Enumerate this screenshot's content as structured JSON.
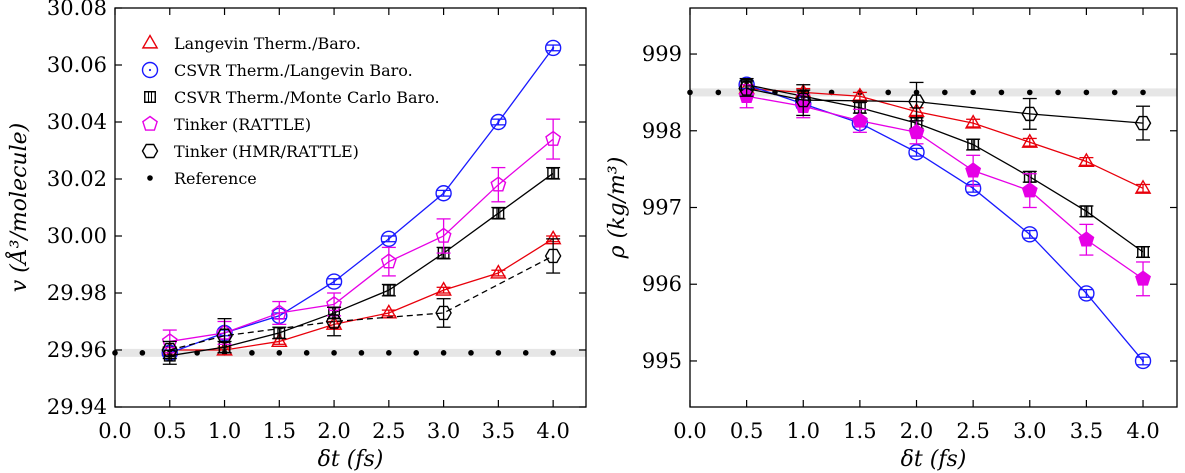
{
  "chart_data": [
    {
      "type": "line",
      "xlabel": "δt (fs)",
      "ylabel": "v (Å³/molecule)",
      "xlim": [
        0.0,
        4.3
      ],
      "ylim": [
        29.94,
        30.08
      ],
      "xticks": [
        0.0,
        0.5,
        1.0,
        1.5,
        2.0,
        2.5,
        3.0,
        3.5,
        4.0
      ],
      "xtick_labels": [
        "0.0",
        "0.5",
        "1.0",
        "1.5",
        "2.0",
        "2.5",
        "3.0",
        "3.5",
        "4.0"
      ],
      "yticks": [
        29.94,
        29.96,
        29.98,
        30.0,
        30.02,
        30.04,
        30.06,
        30.08
      ],
      "ytick_labels": [
        "29.94",
        "29.96",
        "29.98",
        "30.00",
        "30.02",
        "30.04",
        "30.06",
        "30.08"
      ],
      "legend_position": "top-left",
      "reference": {
        "name": "Reference",
        "value": 29.959
      },
      "series": [
        {
          "name": "Langevin Therm./Baro.",
          "color": "#e8000b",
          "marker": "triangle",
          "line": "solid",
          "x": [
            0.5,
            1.0,
            1.5,
            2.0,
            2.5,
            3.0,
            3.5,
            4.0
          ],
          "y": [
            29.96,
            29.96,
            29.963,
            29.969,
            29.973,
            29.981,
            29.987,
            29.999
          ],
          "err": [
            0.001,
            0.001,
            0.001,
            0.001,
            0.001,
            0.001,
            0.001,
            0.001
          ]
        },
        {
          "name": "CSVR Therm./Langevin Baro.",
          "color": "#1a1aff",
          "marker": "circle",
          "line": "solid",
          "x": [
            0.5,
            1.0,
            1.5,
            2.0,
            2.5,
            3.0,
            3.5,
            4.0
          ],
          "y": [
            29.959,
            29.966,
            29.972,
            29.984,
            29.999,
            30.015,
            30.04,
            30.066
          ],
          "err": [
            0.001,
            0.001,
            0.001,
            0.001,
            0.001,
            0.001,
            0.001,
            0.001
          ]
        },
        {
          "name": "CSVR Therm./Monte Carlo Baro.",
          "color": "#000000",
          "marker": "square",
          "line": "solid",
          "x": [
            0.5,
            1.0,
            1.5,
            2.0,
            2.5,
            3.0,
            3.5,
            4.0
          ],
          "y": [
            29.958,
            29.961,
            29.966,
            29.973,
            29.981,
            29.994,
            30.008,
            30.022
          ],
          "err": [
            0.003,
            0.002,
            0.002,
            0.002,
            0.002,
            0.002,
            0.002,
            0.002
          ]
        },
        {
          "name": "Tinker (RATTLE)",
          "color": "#e600e6",
          "marker": "pentagon",
          "line": "solid",
          "x": [
            0.5,
            1.0,
            1.5,
            2.0,
            2.5,
            3.0,
            3.5,
            4.0
          ],
          "y": [
            29.963,
            29.966,
            29.973,
            29.976,
            29.991,
            30.0,
            30.018,
            30.034
          ],
          "err": [
            0.004,
            0.004,
            0.004,
            0.004,
            0.005,
            0.006,
            0.006,
            0.007
          ]
        },
        {
          "name": "Tinker (HMR/RATTLE)",
          "color": "#000000",
          "marker": "hexagon",
          "line": "dashed",
          "x": [
            0.5,
            1.0,
            2.0,
            3.0,
            4.0
          ],
          "y": [
            29.96,
            29.965,
            29.97,
            29.973,
            29.993
          ],
          "err": [
            0.003,
            0.006,
            0.005,
            0.005,
            0.006
          ]
        }
      ]
    },
    {
      "type": "line",
      "xlabel": "δt (fs)",
      "ylabel": "ρ (kg/m³)",
      "xlim": [
        0.0,
        4.3
      ],
      "ylim": [
        994.4,
        999.6
      ],
      "xticks": [
        0.0,
        0.5,
        1.0,
        1.5,
        2.0,
        2.5,
        3.0,
        3.5,
        4.0
      ],
      "xtick_labels": [
        "0.0",
        "0.5",
        "1.0",
        "1.5",
        "2.0",
        "2.5",
        "3.0",
        "3.5",
        "4.0"
      ],
      "yticks": [
        995,
        996,
        997,
        998,
        999
      ],
      "ytick_labels": [
        "995",
        "996",
        "997",
        "998",
        "999"
      ],
      "reference": {
        "name": "Reference",
        "value": 998.5
      },
      "series": [
        {
          "name": "Langevin Therm./Baro.",
          "color": "#e8000b",
          "marker": "triangle",
          "line": "solid",
          "x": [
            0.5,
            1.0,
            1.5,
            2.0,
            2.5,
            3.0,
            3.5,
            4.0
          ],
          "y": [
            998.55,
            998.5,
            998.45,
            998.25,
            998.1,
            997.85,
            997.6,
            997.25
          ],
          "err": [
            0.05,
            0.05,
            0.05,
            0.05,
            0.05,
            0.05,
            0.05,
            0.05
          ]
        },
        {
          "name": "CSVR Therm./Langevin Baro.",
          "color": "#1a1aff",
          "marker": "circle",
          "line": "solid",
          "x": [
            0.5,
            1.0,
            1.5,
            2.0,
            2.5,
            3.0,
            3.5,
            4.0
          ],
          "y": [
            998.6,
            998.35,
            998.1,
            997.72,
            997.25,
            996.65,
            995.88,
            995.0
          ],
          "err": [
            0.05,
            0.05,
            0.05,
            0.05,
            0.05,
            0.05,
            0.05,
            0.05
          ]
        },
        {
          "name": "CSVR Therm./Monte Carlo Baro.",
          "color": "#000000",
          "marker": "square",
          "line": "solid",
          "x": [
            0.5,
            1.0,
            1.5,
            2.0,
            2.5,
            3.0,
            3.5,
            4.0
          ],
          "y": [
            998.6,
            998.45,
            998.3,
            998.1,
            997.82,
            997.4,
            996.95,
            996.42
          ],
          "err": [
            0.08,
            0.08,
            0.07,
            0.07,
            0.07,
            0.07,
            0.07,
            0.07
          ]
        },
        {
          "name": "Tinker (RATTLE)",
          "color": "#e600e6",
          "marker": "pentagon",
          "line": "solid",
          "x": [
            0.5,
            1.0,
            1.5,
            2.0,
            2.5,
            3.0,
            3.5,
            4.0
          ],
          "y": [
            998.45,
            998.32,
            998.13,
            997.98,
            997.48,
            997.22,
            996.58,
            996.07
          ],
          "err": [
            0.15,
            0.15,
            0.15,
            0.15,
            0.2,
            0.22,
            0.2,
            0.22
          ]
        },
        {
          "name": "Tinker (HMR/RATTLE)",
          "color": "#000000",
          "marker": "hexagon",
          "line": "solid",
          "x": [
            0.5,
            1.0,
            2.0,
            3.0,
            4.0
          ],
          "y": [
            998.55,
            998.4,
            998.38,
            998.22,
            998.1
          ],
          "err": [
            0.1,
            0.2,
            0.25,
            0.2,
            0.22
          ]
        }
      ]
    }
  ]
}
